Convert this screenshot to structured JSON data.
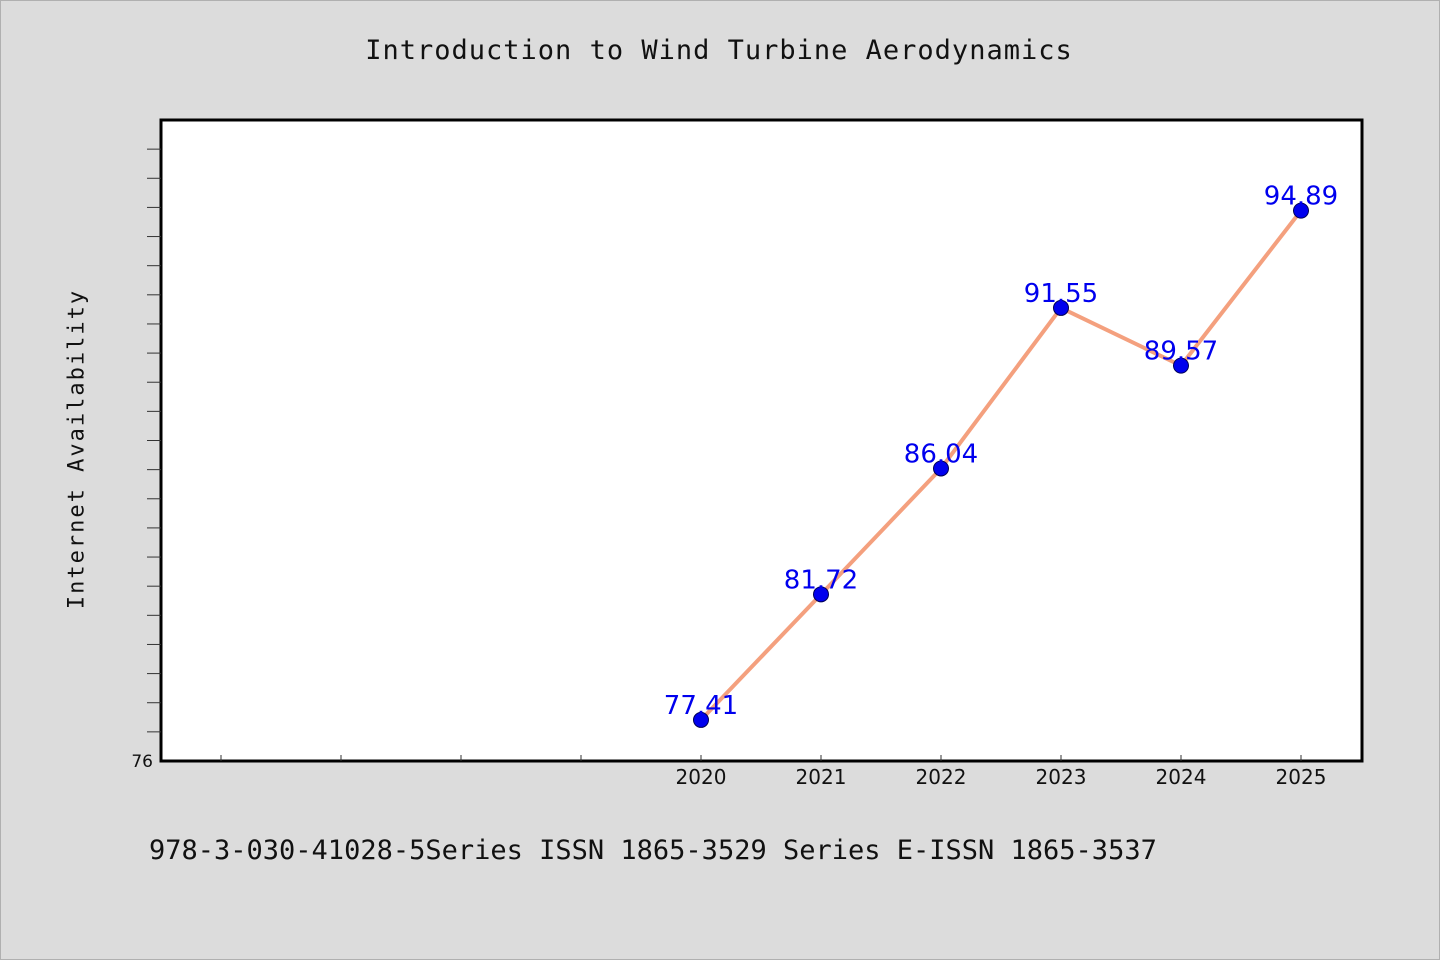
{
  "chart_data": {
    "type": "line",
    "title": "Introduction to Wind Turbine Aerodynamics",
    "xlabel": "",
    "ylabel": "Internet Availability",
    "x": [
      "2020",
      "2021",
      "2022",
      "2023",
      "2024",
      "2025"
    ],
    "series": [
      {
        "values": [
          77.41,
          81.72,
          86.04,
          91.55,
          89.57,
          94.89
        ],
        "labels": [
          "77.41",
          "81.72",
          "86.04",
          "91.55",
          "89.57",
          "94.89"
        ]
      }
    ],
    "y_tick_labels": [
      "76"
    ],
    "ylim": [
      76,
      98
    ],
    "grid": false,
    "legend": "none"
  },
  "footer": "978-3-030-41028-5Series ISSN 1865-3529 Series E-ISSN 1865-3537",
  "colors": {
    "background": "#dcdcdc",
    "plot_area": "#ffffff",
    "line": "#f4a07e",
    "marker": "#0000ee",
    "data_label": "#0000ee"
  }
}
